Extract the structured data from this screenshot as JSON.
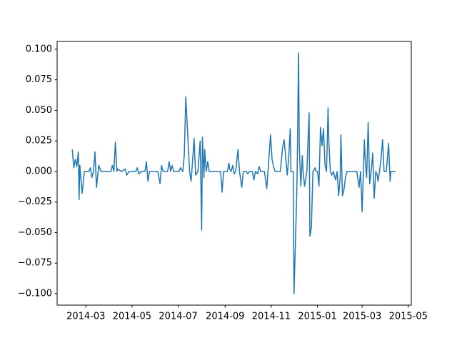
{
  "chart_data": {
    "type": "line",
    "color": "#1f77b4",
    "x": [
      16112,
      16114,
      16116,
      16118,
      16120,
      16121,
      16122,
      16125,
      16128,
      16134,
      16136,
      16138,
      16140,
      16142,
      16144,
      16147,
      16150,
      16163,
      16165,
      16167,
      16169,
      16171,
      16172,
      16177,
      16182,
      16184,
      16187,
      16196,
      16198,
      16200,
      16203,
      16208,
      16210,
      16212,
      16214,
      16225,
      16228,
      16230,
      16232,
      16238,
      16240,
      16242,
      16244,
      16246,
      16253,
      16255,
      16258,
      16260,
      16262,
      16265,
      16267,
      16269,
      16270,
      16273,
      16275,
      16278,
      16281,
      16283,
      16284,
      16286,
      16287,
      16289,
      16291,
      16293,
      16308,
      16310,
      16312,
      16317,
      16319,
      16320,
      16322,
      16324,
      16326,
      16328,
      16331,
      16333,
      16336,
      16338,
      16342,
      16344,
      16346,
      16350,
      16352,
      16354,
      16357,
      16359,
      16361,
      16366,
      16369,
      16372,
      16374,
      16376,
      16378,
      16380,
      16387,
      16390,
      16392,
      16394,
      16396,
      16398,
      16400,
      16401,
      16404,
      16405,
      16407,
      16409,
      16411,
      16412,
      16414,
      16416,
      16417,
      16419,
      16422,
      16425,
      16426,
      16428,
      16430,
      16433,
      16434,
      16436,
      16438,
      16440,
      16442,
      16444,
      16446,
      16448,
      16450,
      16451,
      16453,
      16455,
      16457,
      16460,
      16462,
      16464,
      16466,
      16467,
      16469,
      16471,
      16473,
      16475,
      16488,
      16491,
      16493,
      16495,
      16498,
      16499,
      16501,
      16503,
      16505,
      16507,
      16509,
      16511,
      16513,
      16515,
      16516,
      16518,
      16520,
      16522,
      16524,
      16527,
      16530,
      16532,
      16533,
      16539
    ],
    "values": [
      0.018,
      0.003,
      0.01,
      0.004,
      0.016,
      -0.023,
      0.005,
      -0.018,
      0.0,
      0.0,
      0.003,
      -0.005,
      0.0,
      0.016,
      -0.013,
      0.005,
      0.0,
      0.0,
      0.005,
      0.0,
      0.024,
      0.0,
      0.002,
      0.0,
      0.002,
      -0.003,
      0.0,
      0.0,
      0.003,
      -0.002,
      0.0,
      0.0,
      0.008,
      -0.008,
      0.0,
      0.0,
      -0.01,
      0.005,
      0.0,
      0.0,
      0.008,
      0.0,
      0.005,
      0.0,
      0.0,
      0.003,
      0.0,
      0.013,
      0.061,
      0.025,
      0.0,
      -0.008,
      0.0,
      0.027,
      -0.003,
      0.0,
      0.025,
      -0.048,
      0.028,
      -0.005,
      0.018,
      0.0,
      0.008,
      0.0,
      0.0,
      -0.017,
      0.0,
      0.0,
      0.007,
      0.002,
      0.0,
      0.005,
      -0.002,
      0.0,
      0.018,
      0.0,
      -0.013,
      0.0,
      0.0,
      -0.002,
      0.0,
      0.0,
      -0.007,
      0.0,
      -0.002,
      0.004,
      0.0,
      0.0,
      -0.014,
      0.012,
      0.03,
      0.01,
      0.004,
      0.0,
      0.0,
      0.02,
      0.026,
      0.012,
      -0.003,
      0.011,
      0.035,
      0.0,
      0.0,
      -0.1,
      -0.056,
      -0.008,
      0.097,
      0.02,
      -0.012,
      0.013,
      0.0,
      -0.012,
      0.0,
      0.048,
      -0.053,
      -0.046,
      0.0,
      0.003,
      0.0,
      0.0,
      -0.012,
      0.036,
      0.021,
      0.035,
      0.005,
      0.0,
      0.052,
      0.025,
      0.0,
      -0.003,
      0.0,
      -0.007,
      0.0,
      -0.02,
      -0.005,
      0.03,
      -0.02,
      -0.015,
      -0.005,
      0.0,
      0.0,
      -0.013,
      0.0,
      -0.033,
      0.026,
      0.01,
      -0.005,
      0.04,
      -0.01,
      0.0,
      0.015,
      -0.022,
      0.0,
      -0.003,
      -0.008,
      0.0,
      0.01,
      0.026,
      0.0,
      0.0,
      0.023,
      -0.008,
      0.0,
      0.0
    ],
    "xlim": [
      16092,
      16560
    ],
    "xticks": [
      {
        "value": 16130,
        "label": "2014-03"
      },
      {
        "value": 16191,
        "label": "2014-05"
      },
      {
        "value": 16252,
        "label": "2014-07"
      },
      {
        "value": 16314,
        "label": "2014-09"
      },
      {
        "value": 16375,
        "label": "2014-11"
      },
      {
        "value": 16436,
        "label": "2015-01"
      },
      {
        "value": 16495,
        "label": "2015-03"
      },
      {
        "value": 16556,
        "label": "2015-05"
      }
    ],
    "ylim": [
      -0.1094,
      0.1064
    ],
    "yticks": [
      {
        "value": -0.1,
        "label": "−0.100"
      },
      {
        "value": -0.075,
        "label": "−0.075"
      },
      {
        "value": -0.05,
        "label": "−0.050"
      },
      {
        "value": -0.025,
        "label": "−0.025"
      },
      {
        "value": 0,
        "label": "0.000"
      },
      {
        "value": 0.025,
        "label": "0.025"
      },
      {
        "value": 0.05,
        "label": "0.050"
      },
      {
        "value": 0.075,
        "label": "0.075"
      },
      {
        "value": 0.1,
        "label": "0.100"
      }
    ]
  }
}
